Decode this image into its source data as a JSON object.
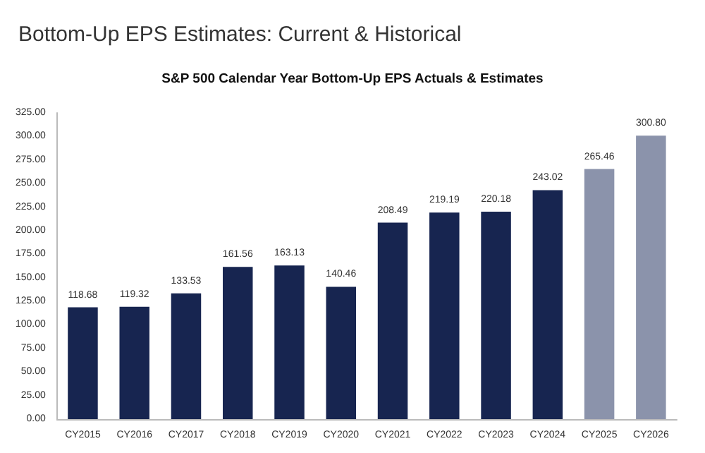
{
  "chart_data": {
    "type": "bar",
    "title": "Bottom-Up EPS Estimates: Current & Historical",
    "subtitle": "S&P 500 Calendar Year Bottom-Up EPS Actuals & Estimates",
    "categories": [
      "CY2015",
      "CY2016",
      "CY2017",
      "CY2018",
      "CY2019",
      "CY2020",
      "CY2021",
      "CY2022",
      "CY2023",
      "CY2024",
      "CY2025",
      "CY2026"
    ],
    "values": [
      118.68,
      119.32,
      133.53,
      161.56,
      163.13,
      140.46,
      208.49,
      219.19,
      220.18,
      243.02,
      265.46,
      300.8
    ],
    "value_labels": [
      "118.68",
      "119.32",
      "133.53",
      "161.56",
      "163.13",
      "140.46",
      "208.49",
      "219.19",
      "220.18",
      "243.02",
      "265.46",
      "300.80"
    ],
    "colors": [
      "#172550",
      "#172550",
      "#172550",
      "#172550",
      "#172550",
      "#172550",
      "#172550",
      "#172550",
      "#172550",
      "#172550",
      "#8b93ab",
      "#8b93ab"
    ],
    "ylim": [
      0,
      325
    ],
    "yticks": [
      {
        "value": 0,
        "label": "0.00"
      },
      {
        "value": 25,
        "label": "25.00"
      },
      {
        "value": 50,
        "label": "50.00"
      },
      {
        "value": 75,
        "label": "75.00"
      },
      {
        "value": 100,
        "label": "100.00"
      },
      {
        "value": 125,
        "label": "125.00"
      },
      {
        "value": 150,
        "label": "150.00"
      },
      {
        "value": 175,
        "label": "175.00"
      },
      {
        "value": 200,
        "label": "200.00"
      },
      {
        "value": 225,
        "label": "225.00"
      },
      {
        "value": 250,
        "label": "250.00"
      },
      {
        "value": 275,
        "label": "275.00"
      },
      {
        "value": 300,
        "label": "300.00"
      },
      {
        "value": 325,
        "label": "325.00"
      }
    ],
    "grid": false
  }
}
